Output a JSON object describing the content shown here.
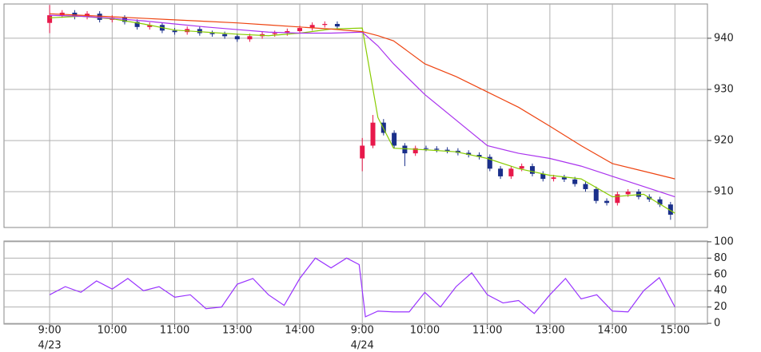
{
  "chart_data": [
    {
      "type": "candlestick",
      "up_color": "#e8194b",
      "down_color": "#1a2f8a",
      "grid": true,
      "xlim": [
        -0.73,
        10.52
      ],
      "ylim": [
        903,
        946.7
      ],
      "yticks": [
        910,
        920,
        930,
        940
      ],
      "xticks": [
        {
          "value": 0,
          "label": "9:00"
        },
        {
          "value": 1,
          "label": "10:00"
        },
        {
          "value": 2,
          "label": "11:00"
        },
        {
          "value": 3,
          "label": "13:00"
        },
        {
          "value": 4,
          "label": "14:00"
        },
        {
          "value": 5,
          "label": "9:00"
        },
        {
          "value": 6,
          "label": "10:00"
        },
        {
          "value": 7,
          "label": "11:00"
        },
        {
          "value": 8,
          "label": "13:00"
        },
        {
          "value": 9,
          "label": "14:00"
        },
        {
          "value": 10,
          "label": "15:00"
        }
      ],
      "xtick_dates": [
        {
          "value": 0,
          "label": "4/23"
        },
        {
          "value": 5,
          "label": "4/24"
        }
      ],
      "candles": {
        "x": [
          0,
          0.2,
          0.4,
          0.6,
          0.8,
          1,
          1.2,
          1.4,
          1.6,
          1.8,
          2,
          2.2,
          2.4,
          2.6,
          2.8,
          3,
          3.2,
          3.4,
          3.6,
          3.8,
          4,
          4.2,
          4.4,
          4.6,
          5,
          5.17,
          5.34,
          5.51,
          5.68,
          5.85,
          6.02,
          6.19,
          6.36,
          6.53,
          6.7,
          6.87,
          7.04,
          7.21,
          7.38,
          7.55,
          7.72,
          7.89,
          8.06,
          8.23,
          8.4,
          8.57,
          8.74,
          8.91,
          9.08,
          9.25,
          9.42,
          9.59,
          9.76,
          9.93
        ],
        "open": [
          943,
          944.5,
          945,
          944.2,
          944.8,
          943.6,
          944,
          943.2,
          942.2,
          942.6,
          941.5,
          941.2,
          941.8,
          941,
          940.8,
          940.4,
          939.8,
          940.4,
          940.8,
          941,
          941.4,
          942,
          942.6,
          942.8,
          916.5,
          919,
          923.5,
          921.5,
          919,
          917.5,
          918.5,
          918.4,
          918.2,
          918,
          917.6,
          917.2,
          916.8,
          914.5,
          913,
          914.5,
          915,
          913.5,
          912.5,
          912.8,
          912.4,
          911.5,
          910.5,
          908.2,
          907.8,
          909.5,
          910,
          909,
          908.5,
          907.5
        ],
        "high": [
          946.5,
          945.5,
          945.5,
          945.3,
          945.3,
          944.5,
          944.5,
          943.7,
          943.1,
          943.1,
          942,
          942.3,
          942.3,
          941.5,
          941.3,
          940.9,
          940.9,
          941.3,
          941.5,
          941.9,
          942.5,
          943.1,
          943.3,
          943.3,
          920.5,
          925,
          924.2,
          922,
          919.5,
          919,
          919,
          918.9,
          918.7,
          918.5,
          918.1,
          917.7,
          917.3,
          915,
          915,
          915.5,
          915.5,
          914,
          913.3,
          913.3,
          912.9,
          912,
          911,
          908.7,
          910,
          910.5,
          910.5,
          909.5,
          909,
          908
        ],
        "low": [
          941,
          944,
          943.7,
          943.7,
          943.1,
          943.1,
          942.7,
          941.7,
          941.7,
          941,
          940.7,
          940.7,
          940.5,
          940.3,
          939.9,
          939.3,
          939.3,
          939.9,
          940.3,
          940.5,
          940.9,
          941.5,
          942.1,
          941.8,
          914,
          918.5,
          921,
          918.5,
          915,
          917,
          917.9,
          917.7,
          917.5,
          917.1,
          916.7,
          916.3,
          914,
          912.5,
          912.5,
          914,
          913,
          912,
          912,
          911.9,
          911,
          910,
          907.7,
          907.3,
          907.3,
          909,
          908.5,
          908,
          907,
          904.5
        ],
        "close": [
          944.5,
          945,
          944.2,
          944.8,
          943.6,
          944,
          943.2,
          942.2,
          942.6,
          941.5,
          941.2,
          941.8,
          941,
          940.8,
          940.4,
          939.8,
          940.4,
          940.8,
          941,
          941.4,
          942,
          942.6,
          942.8,
          942.3,
          919,
          923.5,
          921.5,
          919,
          917.5,
          918.5,
          918.4,
          918.2,
          918,
          917.6,
          917.2,
          916.8,
          914.5,
          913,
          914.5,
          915,
          913.5,
          912.5,
          912.8,
          912.4,
          911.5,
          910.5,
          908.2,
          907.8,
          909.5,
          910,
          909,
          908.5,
          907.5,
          905.5
        ]
      },
      "lines": [
        {
          "color": "#88cc00",
          "x": [
            0,
            0.5,
            1,
            1.5,
            2,
            2.5,
            3,
            3.5,
            4,
            4.5,
            5,
            5.25,
            5.5,
            6,
            6.5,
            7,
            7.5,
            8,
            8.5,
            9,
            9.5,
            10
          ],
          "values": [
            944,
            944.3,
            943.8,
            942.8,
            941.6,
            941.2,
            940.8,
            940.5,
            941,
            941.8,
            942,
            924.5,
            918.5,
            918.2,
            917.8,
            916.5,
            914.5,
            913.2,
            912.5,
            909,
            909.5,
            905.8
          ]
        },
        {
          "color": "#aa33ee",
          "x": [
            0,
            0.5,
            1,
            1.5,
            2,
            2.5,
            3,
            3.5,
            4,
            4.5,
            5,
            5.25,
            5.5,
            6,
            6.5,
            7,
            7.5,
            8,
            8.5,
            9,
            9.5,
            10
          ],
          "values": [
            944.5,
            944.3,
            943.9,
            943.4,
            942.8,
            942.2,
            941.7,
            941.2,
            941,
            941,
            941.2,
            938.5,
            935,
            929,
            924,
            919,
            917.5,
            916.5,
            915,
            913,
            911,
            909
          ]
        },
        {
          "color": "#ee4411",
          "x": [
            0,
            0.5,
            1,
            1.5,
            2,
            2.5,
            3,
            3.5,
            4,
            4.5,
            5,
            5.25,
            5.5,
            6,
            6.5,
            7,
            7.5,
            8,
            8.5,
            9,
            9.5,
            10
          ],
          "values": [
            944.8,
            944.5,
            944.2,
            943.9,
            943.6,
            943.3,
            943,
            942.6,
            942.2,
            941.8,
            941.3,
            940.5,
            939.5,
            935,
            932.5,
            929.5,
            926.5,
            922.8,
            919,
            915.5,
            914,
            912.5
          ]
        }
      ]
    },
    {
      "type": "line",
      "color": "#9933ff",
      "grid": true,
      "xlim": [
        -0.73,
        10.52
      ],
      "ylim": [
        -0.9,
        100.9
      ],
      "yticks": [
        0,
        20,
        40,
        60,
        80,
        100
      ],
      "x": [
        0,
        0.25,
        0.5,
        0.75,
        1,
        1.25,
        1.5,
        1.75,
        2,
        2.25,
        2.5,
        2.75,
        3,
        3.25,
        3.5,
        3.75,
        4,
        4.25,
        4.5,
        4.75,
        4.95,
        5.05,
        5.25,
        5.5,
        5.75,
        6,
        6.25,
        6.5,
        6.75,
        7,
        7.25,
        7.5,
        7.75,
        8,
        8.25,
        8.5,
        8.75,
        9,
        9.25,
        9.5,
        9.75,
        10
      ],
      "values": [
        35,
        45,
        38,
        52,
        42,
        55,
        40,
        45,
        32,
        35,
        18,
        20,
        48,
        55,
        35,
        22,
        55,
        80,
        68,
        80,
        72,
        8,
        15,
        14,
        14,
        38,
        20,
        45,
        62,
        35,
        25,
        28,
        12,
        35,
        55,
        30,
        35,
        15,
        14,
        40,
        56,
        20
      ]
    }
  ]
}
